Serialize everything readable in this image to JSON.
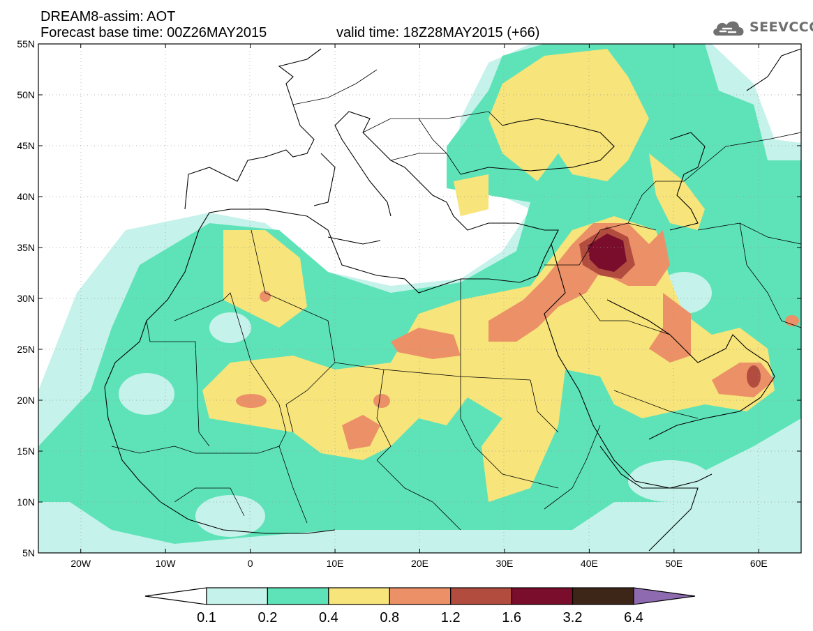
{
  "header": {
    "title": "DREAM8-assim: AOT",
    "base_time": "Forecast base time: 00Z26MAY2015",
    "valid_time": "valid time: 18Z28MAY2015 (+66)"
  },
  "logo": {
    "icon": "cloud-icon",
    "text": "SEEVCCC"
  },
  "map": {
    "lon_range": [
      -25,
      65
    ],
    "lat_range": [
      5,
      55
    ],
    "lat_ticks": [
      "55N",
      "50N",
      "45N",
      "40N",
      "35N",
      "30N",
      "25N",
      "20N",
      "15N",
      "10N",
      "5N"
    ],
    "lon_ticks": [
      "20W",
      "10W",
      "0",
      "10E",
      "20E",
      "30E",
      "40E",
      "50E",
      "60E"
    ]
  },
  "colorbar": {
    "labels": [
      "0.1",
      "0.2",
      "0.4",
      "0.8",
      "1.2",
      "1.6",
      "3.2",
      "6.4"
    ],
    "colors": [
      "#ffffff",
      "#c5f2ea",
      "#5ee3b8",
      "#f7e47a",
      "#ec9167",
      "#b24c3f",
      "#7a0d2b",
      "#3d2617",
      "#8e6bb0"
    ]
  }
}
